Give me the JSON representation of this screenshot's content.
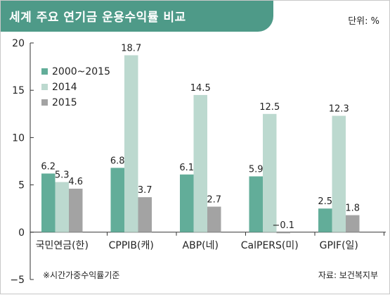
{
  "chart_data": {
    "type": "bar",
    "title": "세계 주요 연기금 운용수익률 비교",
    "unit_label": "단위: %",
    "categories": [
      "국민연금(한)",
      "CPPIB(캐)",
      "ABP(네)",
      "CalPERS(미)",
      "GPIF(일)"
    ],
    "series": [
      {
        "name": "2000~2015",
        "color": "#62ad99",
        "values": [
          6.2,
          6.8,
          6.1,
          5.9,
          2.5
        ]
      },
      {
        "name": "2014",
        "color": "#bcd9cf",
        "values": [
          5.3,
          18.7,
          14.5,
          12.5,
          12.3
        ]
      },
      {
        "name": "2015",
        "color": "#a3a3a3",
        "values": [
          4.6,
          3.7,
          2.7,
          -0.1,
          1.8
        ]
      }
    ],
    "data_labels": [
      [
        "6.2",
        "6.8",
        "6.1",
        "5.9",
        "2.5"
      ],
      [
        "5.3",
        "18.7",
        "14.5",
        "12.5",
        "12.3"
      ],
      [
        "4.6",
        "3.7",
        "2.7",
        "−0.1",
        "1.8"
      ]
    ],
    "ylim": [
      -5,
      20
    ],
    "yticks": [
      20,
      15,
      10,
      5,
      0,
      -5
    ],
    "ytick_labels": [
      "20",
      "15",
      "10",
      "5",
      "0",
      "−5"
    ],
    "legend_position": "top-left",
    "footnote": "※시간가중수익률기준",
    "source": "자료: 보건복지부"
  }
}
